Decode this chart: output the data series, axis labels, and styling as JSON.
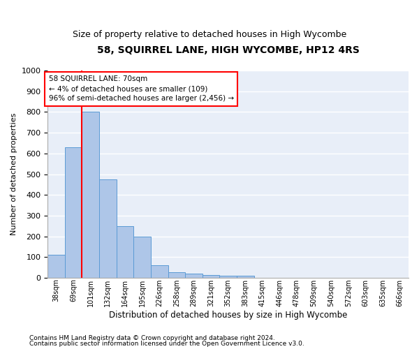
{
  "title": "58, SQUIRREL LANE, HIGH WYCOMBE, HP12 4RS",
  "subtitle": "Size of property relative to detached houses in High Wycombe",
  "xlabel": "Distribution of detached houses by size in High Wycombe",
  "ylabel": "Number of detached properties",
  "footnote1": "Contains HM Land Registry data © Crown copyright and database right 2024.",
  "footnote2": "Contains public sector information licensed under the Open Government Licence v3.0.",
  "annotation_line1": "58 SQUIRREL LANE: 70sqm",
  "annotation_line2": "← 4% of detached houses are smaller (109)",
  "annotation_line3": "96% of semi-detached houses are larger (2,456) →",
  "bar_color": "#aec6e8",
  "bar_edge_color": "#5b9bd5",
  "marker_color": "red",
  "categories": [
    "38sqm",
    "69sqm",
    "101sqm",
    "132sqm",
    "164sqm",
    "195sqm",
    "226sqm",
    "258sqm",
    "289sqm",
    "321sqm",
    "352sqm",
    "383sqm",
    "415sqm",
    "446sqm",
    "478sqm",
    "509sqm",
    "540sqm",
    "572sqm",
    "603sqm",
    "635sqm",
    "666sqm"
  ],
  "values": [
    110,
    630,
    800,
    475,
    250,
    200,
    62,
    28,
    20,
    14,
    10,
    10,
    0,
    0,
    0,
    0,
    0,
    0,
    0,
    0,
    0
  ],
  "ylim": [
    0,
    1000
  ],
  "yticks": [
    0,
    100,
    200,
    300,
    400,
    500,
    600,
    700,
    800,
    900,
    1000
  ],
  "bg_color": "#e8eef8",
  "grid_color": "white",
  "title_fontsize": 10,
  "subtitle_fontsize": 9,
  "ylabel_fontsize": 8,
  "xlabel_fontsize": 8.5,
  "footnote_fontsize": 6.5,
  "annot_fontsize": 7.5,
  "marker_bar_index": 1
}
